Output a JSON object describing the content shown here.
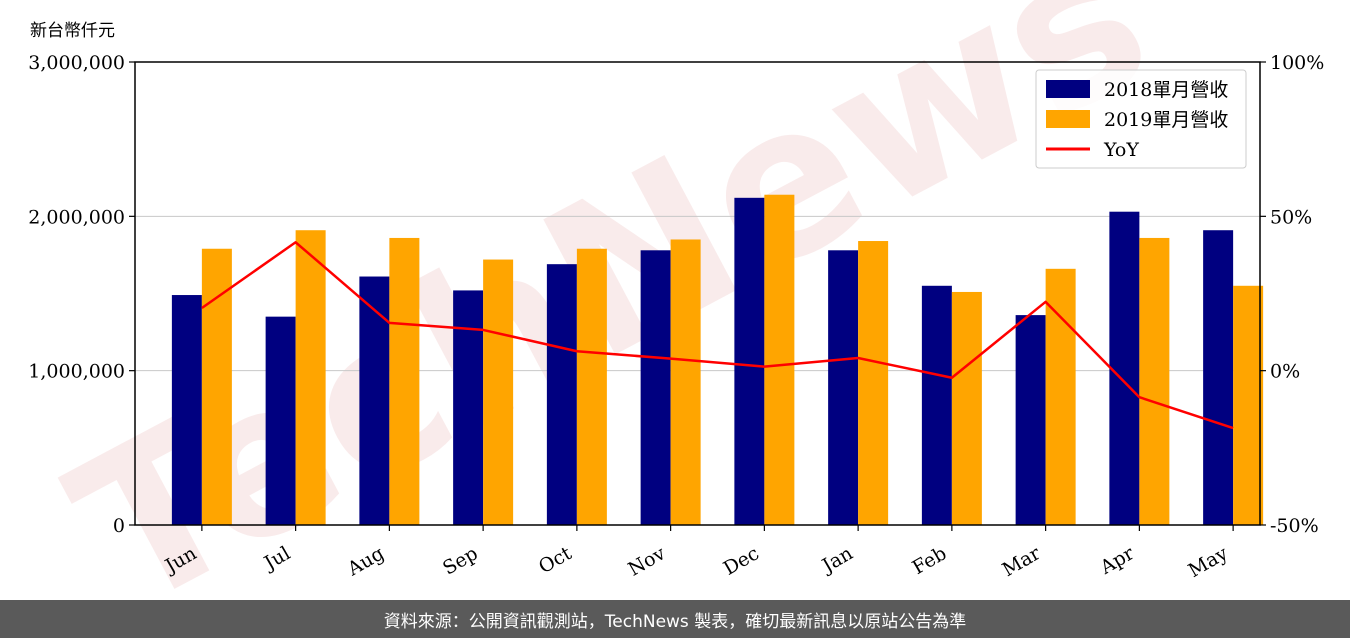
{
  "unit_label": "新台幣仟元",
  "footer_text": "資料來源：公開資訊觀測站，TechNews 製表，確切最新訊息以原站公告為準",
  "watermark_text": "TechNews",
  "chart_data": {
    "type": "bar",
    "categories": [
      "Jun",
      "Jul",
      "Aug",
      "Sep",
      "Oct",
      "Nov",
      "Dec",
      "Jan",
      "Feb",
      "Mar",
      "Apr",
      "May"
    ],
    "series": [
      {
        "name": "2018單月營收",
        "type": "bar",
        "axis": "left",
        "color": "#000080",
        "values": [
          1490000,
          1350000,
          1610000,
          1520000,
          1690000,
          1780000,
          2120000,
          1780000,
          1550000,
          1360000,
          2030000,
          1910000
        ]
      },
      {
        "name": "2019單月營收",
        "type": "bar",
        "axis": "left",
        "color": "#FFA500",
        "values": [
          1790000,
          1910000,
          1860000,
          1720000,
          1790000,
          1850000,
          2140000,
          1840000,
          1510000,
          1660000,
          1860000,
          1550000
        ]
      }
    ],
    "line_series": [
      {
        "name": "YoY",
        "type": "line",
        "axis": "right",
        "color": "#FF0000",
        "values": [
          20.3,
          41.6,
          15.5,
          13.2,
          6.3,
          3.9,
          1.3,
          4.1,
          -2.3,
          22.3,
          -8.6,
          -18.6
        ]
      }
    ],
    "y_left": {
      "ticks": [
        0,
        1000000,
        2000000,
        3000000
      ],
      "tick_labels": [
        "0",
        "1,000,000",
        "2,000,000",
        "3,000,000"
      ],
      "lim": [
        0,
        3000000
      ]
    },
    "y_right": {
      "ticks": [
        -50,
        0,
        50,
        100
      ],
      "tick_labels": [
        "-50%",
        "0%",
        "50%",
        "100%"
      ],
      "lim": [
        -50,
        100
      ]
    },
    "grid": true,
    "legend_position": "top-right"
  }
}
